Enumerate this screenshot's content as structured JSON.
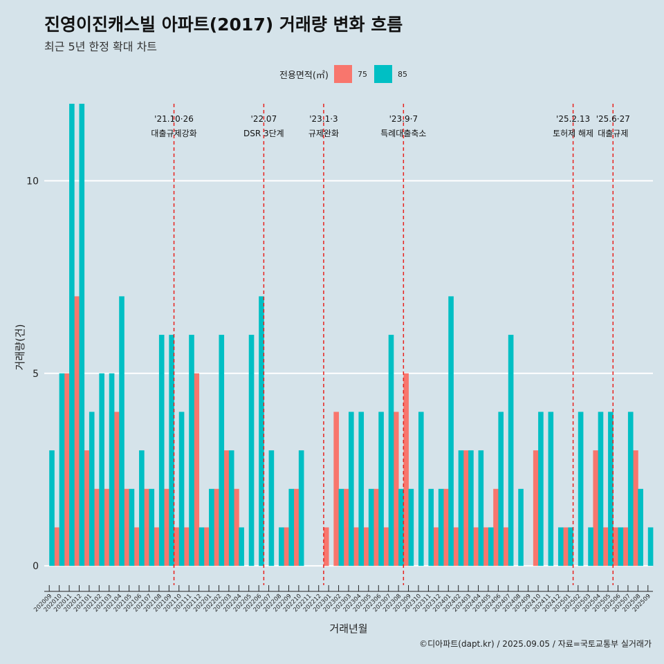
{
  "title": "진영이진캐스빌 아파트(2017) 거래량 변화 흐름",
  "subtitle": "최근 5년 한정 확대 차트",
  "legend": {
    "title": "전용면적(㎡)",
    "items": [
      {
        "label": "75",
        "color": "#f8766d"
      },
      {
        "label": "85",
        "color": "#00bfc4"
      }
    ]
  },
  "caption": "©디아파트(dapt.kr) / 2025.09.05 / 자료=국토교통부 실거래가",
  "chart_data": {
    "type": "bar",
    "title": "진영이진캐스빌 아파트(2017) 거래량 변화 흐름",
    "xlabel": "거래년월",
    "ylabel": "거래량(건)",
    "ylim": [
      -0.5,
      12
    ],
    "yticks": [
      0,
      5,
      10
    ],
    "categories": [
      "202009",
      "202010",
      "202011",
      "202012",
      "202101",
      "202102",
      "202103",
      "202104",
      "202105",
      "202106",
      "202107",
      "202108",
      "202109",
      "202110",
      "202111",
      "202112",
      "202201",
      "202202",
      "202203",
      "202204",
      "202205",
      "202206",
      "202207",
      "202208",
      "202209",
      "202210",
      "202211",
      "202212",
      "202301",
      "202302",
      "202303",
      "202304",
      "202305",
      "202306",
      "202307",
      "202308",
      "202309",
      "202310",
      "202311",
      "202312",
      "202401",
      "202402",
      "202403",
      "202404",
      "202405",
      "202406",
      "202407",
      "202408",
      "202409",
      "202410",
      "202411",
      "202412",
      "202501",
      "202502",
      "202503",
      "202504",
      "202505",
      "202506",
      "202507",
      "202508",
      "202509"
    ],
    "series": [
      {
        "name": "75",
        "color": "#f8766d",
        "values": [
          0,
          1,
          5,
          7,
          3,
          2,
          2,
          4,
          2,
          1,
          2,
          1,
          2,
          1,
          1,
          5,
          1,
          2,
          3,
          2,
          0,
          0,
          0,
          0,
          1,
          2,
          0,
          0,
          1,
          4,
          2,
          1,
          1,
          2,
          1,
          4,
          5,
          0,
          0,
          1,
          2,
          1,
          3,
          1,
          1,
          2,
          1,
          0,
          0,
          3,
          0,
          0,
          1,
          0,
          0,
          3,
          1,
          1,
          1,
          3,
          0
        ]
      },
      {
        "name": "85",
        "color": "#00bfc4",
        "values": [
          3,
          5,
          12,
          12,
          4,
          5,
          5,
          7,
          2,
          3,
          2,
          6,
          6,
          4,
          6,
          1,
          2,
          6,
          3,
          1,
          6,
          7,
          3,
          1,
          2,
          3,
          0,
          0,
          0,
          2,
          4,
          4,
          2,
          4,
          6,
          2,
          2,
          4,
          2,
          2,
          7,
          3,
          3,
          3,
          1,
          4,
          6,
          2,
          0,
          4,
          4,
          1,
          1,
          4,
          1,
          4,
          4,
          1,
          4,
          2,
          1
        ]
      }
    ],
    "vlines": [
      {
        "position": 13.0,
        "date": "'21.10·26",
        "label": "대출규제강화"
      },
      {
        "position": 22.0,
        "date": "'22.07",
        "label": "DSR 3단계"
      },
      {
        "position": 28.0,
        "date": "'23.1·3",
        "label": "규제완화"
      },
      {
        "position": 36.0,
        "date": "'23.9·7",
        "label": "특례대출축소"
      },
      {
        "position": 53.0,
        "date": "'25.2.13",
        "label": "토허제 해제"
      },
      {
        "position": 57.0,
        "date": "'25.6·27",
        "label": "대출규제"
      }
    ]
  }
}
